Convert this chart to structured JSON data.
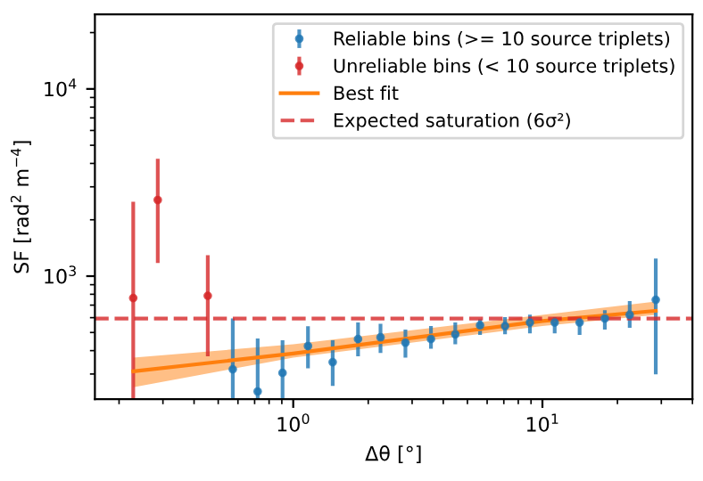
{
  "chart_data": {
    "type": "scatter",
    "xlabel": "Δθ [°]",
    "ylabel": "SF [rad$^{2}$ m$^{−4}$]",
    "log": "xy",
    "xlim": [
      0.16,
      40
    ],
    "ylim": [
      220,
      25000
    ],
    "xticks": [
      {
        "value": 1,
        "label": "10$^{0}$"
      },
      {
        "value": 10,
        "label": "10$^{1}$"
      }
    ],
    "yticks": [
      {
        "value": 1000,
        "label": "10$^{3}$"
      },
      {
        "value": 10000,
        "label": "10$^{4}$"
      }
    ],
    "grid": false,
    "legend": "top right",
    "series": [
      {
        "name": "Reliable bins (>= 10 source triplets)",
        "marker": "circle",
        "color": "#1f77b4",
        "x": [
          0.572,
          0.72,
          0.906,
          1.146,
          1.44,
          1.82,
          2.24,
          2.82,
          3.57,
          4.47,
          5.62,
          7.08,
          8.91,
          11.2,
          14.1,
          17.8,
          22.4,
          28.5
        ],
        "values": [
          318,
          242,
          304,
          423,
          347,
          461,
          471,
          441,
          461,
          489,
          546,
          541,
          565,
          565,
          565,
          594,
          621,
          747
        ],
        "errors": [
          [
            220,
            594
          ],
          [
            220,
            464
          ],
          [
            220,
            454
          ],
          [
            322,
            540
          ],
          [
            259,
            454
          ],
          [
            373,
            565
          ],
          [
            389,
            557
          ],
          [
            367,
            518
          ],
          [
            410,
            541
          ],
          [
            432,
            565
          ],
          [
            485,
            590
          ],
          [
            489,
            604
          ],
          [
            495,
            622
          ],
          [
            495,
            604
          ],
          [
            485,
            604
          ],
          [
            518,
            657
          ],
          [
            530,
            736
          ],
          [
            299,
            1240
          ]
        ]
      },
      {
        "name": "Unreliable bins (< 10 source triplets)",
        "marker": "circle",
        "color": "#d62728",
        "x": [
          0.228,
          0.286,
          0.454
        ],
        "values": [
          764,
          2550,
          785
        ],
        "errors": [
          [
            220,
            2494
          ],
          [
            1174,
            4230
          ],
          [
            373,
            1292
          ]
        ]
      },
      {
        "name": "Best fit",
        "type": "line",
        "color": "#ff7f0e",
        "line_style": "solid",
        "x": [
          0.228,
          1,
          10,
          28.5
        ],
        "values": [
          310,
          386,
          576,
          653
        ],
        "lower": [
          255,
          367,
          541,
          621
        ],
        "upper": [
          367,
          432,
          621,
          731
        ]
      }
    ],
    "ref_lines": [
      {
        "axis": "y",
        "value": 594,
        "label": "Expected saturation (6σ²)",
        "color": "#d62728",
        "line_style": "dashed"
      }
    ]
  }
}
